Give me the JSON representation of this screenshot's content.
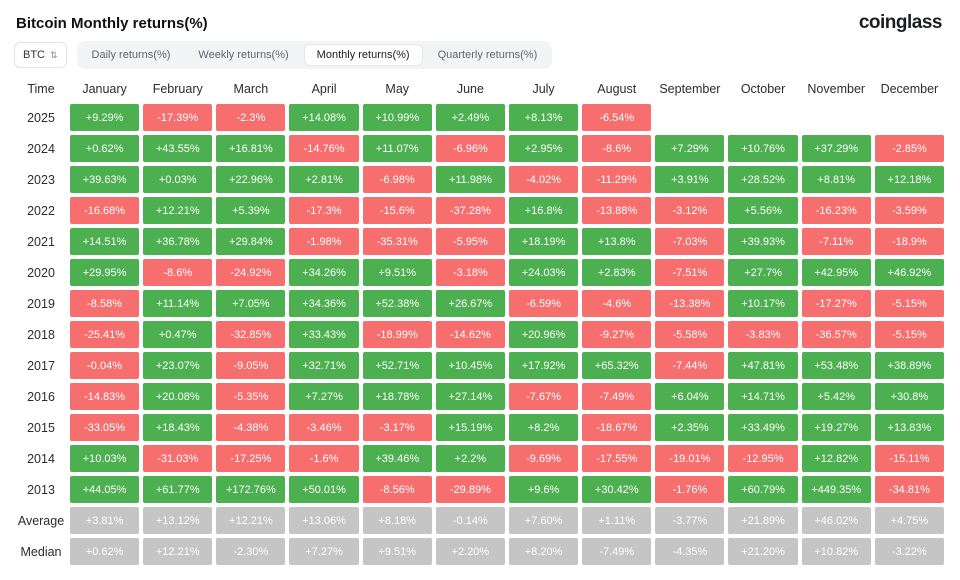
{
  "header": {
    "title": "Bitcoin Monthly returns(%)",
    "logo": "coinglass"
  },
  "toolbar": {
    "symbol": "BTC",
    "tabs": [
      {
        "label": "Daily returns(%)",
        "active": false
      },
      {
        "label": "Weekly returns(%)",
        "active": false
      },
      {
        "label": "Monthly returns(%)",
        "active": true
      },
      {
        "label": "Quarterly returns(%)",
        "active": false
      }
    ]
  },
  "icons": {
    "symbol_select_arrows": "⇅"
  },
  "colors": {
    "positive": "#4caf50",
    "negative": "#f66e6e",
    "summary": "#c5c5c5",
    "cell_text": "#ffffff"
  },
  "table": {
    "columns": [
      "Time",
      "January",
      "February",
      "March",
      "April",
      "May",
      "June",
      "July",
      "August",
      "September",
      "October",
      "November",
      "December"
    ],
    "rows": [
      {
        "label": "2025",
        "summary": false,
        "values": [
          "+9.29%",
          "-17.39%",
          "-2.3%",
          "+14.08%",
          "+10.99%",
          "+2.49%",
          "+8.13%",
          "-6.54%",
          "",
          "",
          "",
          ""
        ]
      },
      {
        "label": "2024",
        "summary": false,
        "values": [
          "+0.62%",
          "+43.55%",
          "+16.81%",
          "-14.76%",
          "+11.07%",
          "-6.96%",
          "+2.95%",
          "-8.6%",
          "+7.29%",
          "+10.76%",
          "+37.29%",
          "-2.85%"
        ]
      },
      {
        "label": "2023",
        "summary": false,
        "values": [
          "+39.63%",
          "+0.03%",
          "+22.96%",
          "+2.81%",
          "-6.98%",
          "+11.98%",
          "-4.02%",
          "-11.29%",
          "+3.91%",
          "+28.52%",
          "+8.81%",
          "+12.18%"
        ]
      },
      {
        "label": "2022",
        "summary": false,
        "values": [
          "-16.68%",
          "+12.21%",
          "+5.39%",
          "-17.3%",
          "-15.6%",
          "-37.28%",
          "+16.8%",
          "-13.88%",
          "-3.12%",
          "+5.56%",
          "-16.23%",
          "-3.59%"
        ]
      },
      {
        "label": "2021",
        "summary": false,
        "values": [
          "+14.51%",
          "+36.78%",
          "+29.84%",
          "-1.98%",
          "-35.31%",
          "-5.95%",
          "+18.19%",
          "+13.8%",
          "-7.03%",
          "+39.93%",
          "-7.11%",
          "-18.9%"
        ]
      },
      {
        "label": "2020",
        "summary": false,
        "values": [
          "+29.95%",
          "-8.6%",
          "-24.92%",
          "+34.26%",
          "+9.51%",
          "-3.18%",
          "+24.03%",
          "+2.83%",
          "-7.51%",
          "+27.7%",
          "+42.95%",
          "+46.92%"
        ]
      },
      {
        "label": "2019",
        "summary": false,
        "values": [
          "-8.58%",
          "+11.14%",
          "+7.05%",
          "+34.36%",
          "+52.38%",
          "+26.67%",
          "-6.59%",
          "-4.6%",
          "-13.38%",
          "+10.17%",
          "-17.27%",
          "-5.15%"
        ]
      },
      {
        "label": "2018",
        "summary": false,
        "values": [
          "-25.41%",
          "+0.47%",
          "-32.85%",
          "+33.43%",
          "-18.99%",
          "-14.62%",
          "+20.96%",
          "-9.27%",
          "-5.58%",
          "-3.83%",
          "-36.57%",
          "-5.15%"
        ]
      },
      {
        "label": "2017",
        "summary": false,
        "values": [
          "-0.04%",
          "+23.07%",
          "-9.05%",
          "+32.71%",
          "+52.71%",
          "+10.45%",
          "+17.92%",
          "+65.32%",
          "-7.44%",
          "+47.81%",
          "+53.48%",
          "+38.89%"
        ]
      },
      {
        "label": "2016",
        "summary": false,
        "values": [
          "-14.83%",
          "+20.08%",
          "-5.35%",
          "+7.27%",
          "+18.78%",
          "+27.14%",
          "-7.67%",
          "-7.49%",
          "+6.04%",
          "+14.71%",
          "+5.42%",
          "+30.8%"
        ]
      },
      {
        "label": "2015",
        "summary": false,
        "values": [
          "-33.05%",
          "+18.43%",
          "-4.38%",
          "-3.46%",
          "-3.17%",
          "+15.19%",
          "+8.2%",
          "-18.67%",
          "+2.35%",
          "+33.49%",
          "+19.27%",
          "+13.83%"
        ]
      },
      {
        "label": "2014",
        "summary": false,
        "values": [
          "+10.03%",
          "-31.03%",
          "-17.25%",
          "-1.6%",
          "+39.46%",
          "+2.2%",
          "-9.69%",
          "-17.55%",
          "-19.01%",
          "-12.95%",
          "+12.82%",
          "-15.11%"
        ]
      },
      {
        "label": "2013",
        "summary": false,
        "values": [
          "+44.05%",
          "+61.77%",
          "+172.76%",
          "+50.01%",
          "-8.56%",
          "-29.89%",
          "+9.6%",
          "+30.42%",
          "-1.76%",
          "+60.79%",
          "+449.35%",
          "-34.81%"
        ]
      },
      {
        "label": "Average",
        "summary": true,
        "values": [
          "+3.81%",
          "+13.12%",
          "+12.21%",
          "+13.06%",
          "+8.18%",
          "-0.14%",
          "+7.60%",
          "+1.11%",
          "-3.77%",
          "+21.89%",
          "+46.02%",
          "+4.75%"
        ]
      },
      {
        "label": "Median",
        "summary": true,
        "values": [
          "+0.62%",
          "+12.21%",
          "-2.30%",
          "+7.27%",
          "+9.51%",
          "+2.20%",
          "+8.20%",
          "-7.49%",
          "-4.35%",
          "+21.20%",
          "+10.82%",
          "-3.22%"
        ]
      }
    ]
  }
}
